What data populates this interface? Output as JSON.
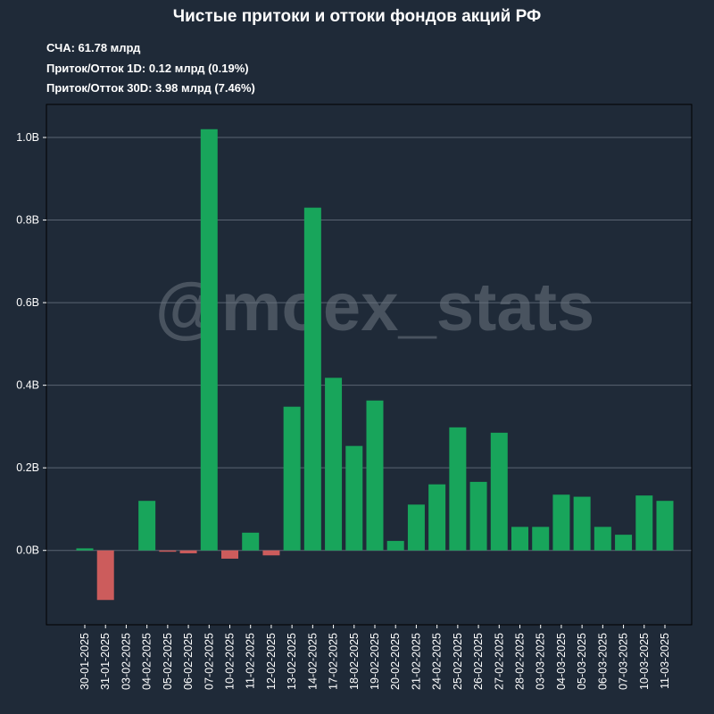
{
  "title": "Чистые притоки и оттоки фондов акций РФ",
  "stats": [
    {
      "label": "СЧА: ",
      "value": "61.78 млрд"
    },
    {
      "label": "Приток/Отток 1D: ",
      "value": "0.12 млрд (0.19%)"
    },
    {
      "label": "Приток/Отток 30D: ",
      "value": "3.98 млрд (7.46%)"
    }
  ],
  "watermark": "@moex_stats",
  "colors": {
    "background": "#1f2a38",
    "positive": "#18a55b",
    "negative": "#cc5c5c",
    "grid": "#5a6472"
  },
  "chart_data": {
    "type": "bar",
    "title": "Чистые притоки и оттоки фондов акций РФ",
    "xlabel": "",
    "ylabel": "",
    "ylim": [
      -0.18,
      1.08
    ],
    "yticks": [
      0.0,
      0.2,
      0.4,
      0.6,
      0.8,
      1.0
    ],
    "ytick_labels": [
      "0.0B",
      "0.2B",
      "0.4B",
      "0.6B",
      "0.8B",
      "1.0B"
    ],
    "grid": true,
    "categories": [
      "30-01-2025",
      "31-01-2025",
      "03-02-2025",
      "04-02-2025",
      "05-02-2025",
      "06-02-2025",
      "07-02-2025",
      "10-02-2025",
      "11-02-2025",
      "12-02-2025",
      "13-02-2025",
      "14-02-2025",
      "17-02-2025",
      "18-02-2025",
      "19-02-2025",
      "20-02-2025",
      "21-02-2025",
      "24-02-2025",
      "25-02-2025",
      "26-02-2025",
      "27-02-2025",
      "28-02-2025",
      "03-03-2025",
      "04-03-2025",
      "05-03-2025",
      "06-03-2025",
      "07-03-2025",
      "10-03-2025",
      "11-03-2025"
    ],
    "values": [
      0.005,
      -0.12,
      0.0,
      0.12,
      -0.003,
      -0.007,
      1.02,
      -0.02,
      0.043,
      -0.012,
      0.348,
      0.83,
      0.418,
      0.253,
      0.363,
      0.023,
      0.111,
      0.16,
      0.298,
      0.166,
      0.285,
      0.057,
      0.057,
      0.135,
      0.13,
      0.057,
      0.038,
      0.133,
      0.12
    ]
  }
}
